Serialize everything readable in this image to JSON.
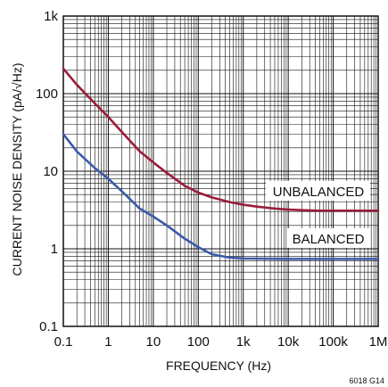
{
  "chart_data": {
    "type": "line",
    "x_scale": "log",
    "y_scale": "log",
    "xlim": [
      0.1,
      1000000
    ],
    "ylim": [
      0.1,
      1000
    ],
    "grid": true,
    "xlabel": "FREQUENCY (Hz)",
    "ylabel": "CURRENT NOISE DENSITY (pA/√Hz)",
    "x_ticks": [
      {
        "value": 0.1,
        "label": "0.1"
      },
      {
        "value": 1,
        "label": "1"
      },
      {
        "value": 10,
        "label": "10"
      },
      {
        "value": 100,
        "label": "100"
      },
      {
        "value": 1000,
        "label": "1k"
      },
      {
        "value": 10000,
        "label": "10k"
      },
      {
        "value": 100000,
        "label": "100k"
      },
      {
        "value": 1000000,
        "label": "1M"
      }
    ],
    "y_ticks": [
      {
        "value": 0.1,
        "label": "0.1"
      },
      {
        "value": 1,
        "label": "1"
      },
      {
        "value": 10,
        "label": "10"
      },
      {
        "value": 100,
        "label": "100"
      },
      {
        "value": 1000,
        "label": "1k"
      }
    ],
    "series": [
      {
        "name": "UNBALANCED",
        "color": "#9b1c3a",
        "points": [
          [
            0.1,
            210
          ],
          [
            0.2,
            130
          ],
          [
            0.5,
            75
          ],
          [
            1,
            50
          ],
          [
            2,
            32
          ],
          [
            5,
            18
          ],
          [
            10,
            13
          ],
          [
            20,
            9.5
          ],
          [
            50,
            6.5
          ],
          [
            100,
            5.3
          ],
          [
            200,
            4.6
          ],
          [
            500,
            4.0
          ],
          [
            1000,
            3.7
          ],
          [
            2000,
            3.5
          ],
          [
            5000,
            3.3
          ],
          [
            10000,
            3.2
          ],
          [
            20000,
            3.15
          ],
          [
            50000,
            3.1
          ],
          [
            100000,
            3.1
          ],
          [
            1000000,
            3.1
          ]
        ]
      },
      {
        "name": "BALANCED",
        "color": "#3a5aa8",
        "points": [
          [
            0.1,
            30
          ],
          [
            0.2,
            18
          ],
          [
            0.5,
            11
          ],
          [
            1,
            8
          ],
          [
            2,
            5.5
          ],
          [
            5,
            3.3
          ],
          [
            10,
            2.6
          ],
          [
            20,
            2.0
          ],
          [
            50,
            1.35
          ],
          [
            100,
            1.05
          ],
          [
            200,
            0.85
          ],
          [
            500,
            0.77
          ],
          [
            1000,
            0.75
          ],
          [
            10000,
            0.74
          ],
          [
            100000,
            0.74
          ],
          [
            1000000,
            0.74
          ]
        ]
      }
    ],
    "annotations": {
      "figure_id": "6018 G14"
    }
  }
}
